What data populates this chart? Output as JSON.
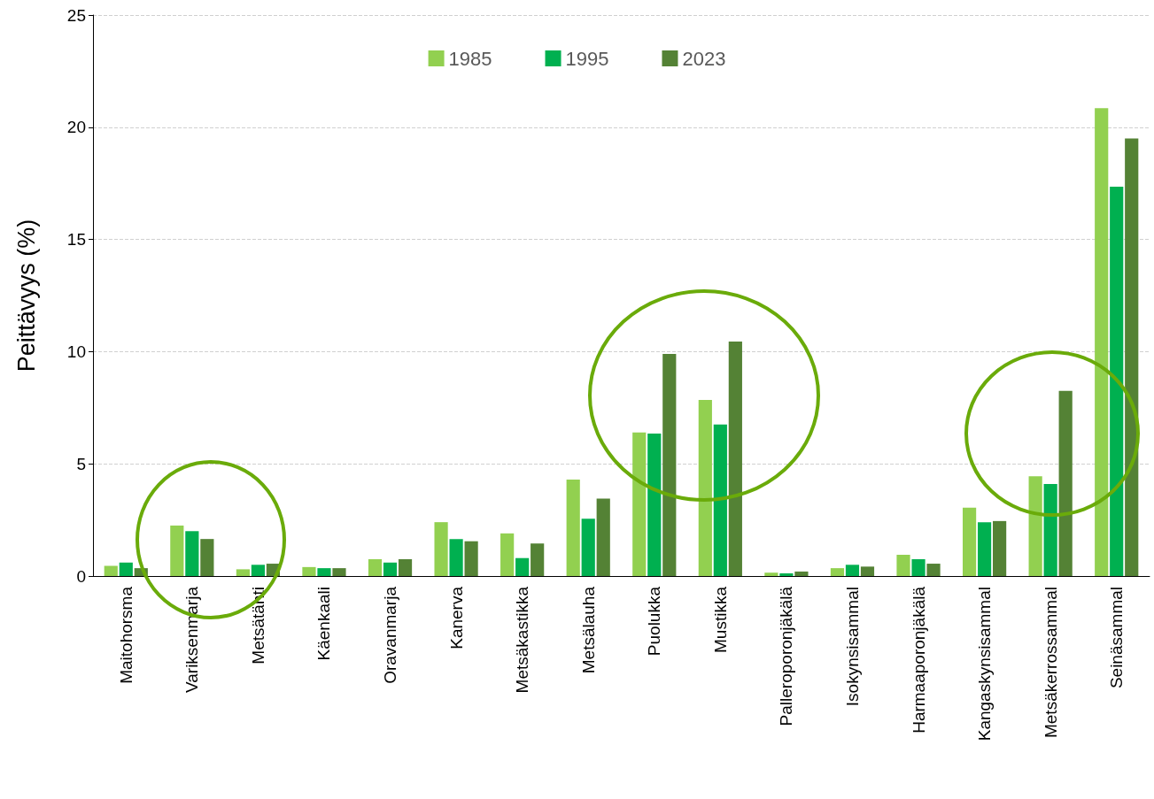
{
  "chart_data": {
    "type": "bar",
    "ylabel": "Peittävyys (%)",
    "categories": [
      "Maitohorsma",
      "Variksenmarja",
      "Metsätähti",
      "Käenkaali",
      "Oravanmarja",
      "Kanerva",
      "Metsäkastikka",
      "Metsälauha",
      "Puolukka",
      "Mustikka",
      "Palleroporonjäkälä",
      "Isokynsisammal",
      "Harmaaporonjäkälä",
      "Kangaskynsisammal",
      "Metsäkerrossammal",
      "Seinäsammal"
    ],
    "series": [
      {
        "name": "1985",
        "color": "#92d050",
        "values": [
          0.45,
          2.25,
          0.3,
          0.4,
          0.75,
          2.4,
          1.9,
          4.3,
          6.4,
          7.85,
          0.15,
          0.35,
          0.95,
          3.05,
          4.45,
          20.85
        ]
      },
      {
        "name": "1995",
        "color": "#00b050",
        "values": [
          0.6,
          2.0,
          0.5,
          0.35,
          0.6,
          1.65,
          0.8,
          2.55,
          6.35,
          6.75,
          0.12,
          0.5,
          0.75,
          2.4,
          4.1,
          17.35
        ]
      },
      {
        "name": "2023",
        "color": "#548235",
        "values": [
          0.35,
          1.65,
          0.55,
          0.35,
          0.75,
          1.55,
          1.45,
          3.45,
          9.9,
          10.45,
          0.2,
          0.42,
          0.55,
          2.45,
          8.25,
          19.5
        ]
      }
    ],
    "ylim": [
      0,
      25
    ],
    "yticks": [
      0,
      5,
      10,
      15,
      20,
      25
    ],
    "grid": "y",
    "legend": "top"
  }
}
